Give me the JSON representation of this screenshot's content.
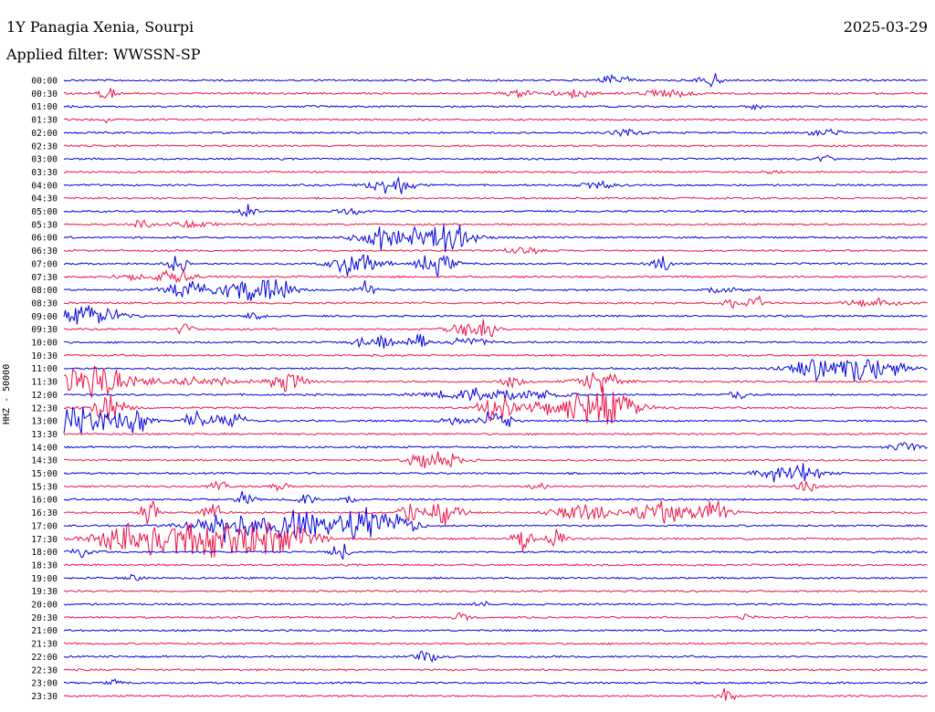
{
  "header": {
    "station": "1Y Panagia Xenia, Sourpi",
    "date": "2025-03-29",
    "filter": "Applied filter: WWSSN-SP"
  },
  "chart_data": {
    "type": "line",
    "title": "1Y Panagia Xenia, Sourpi",
    "ylabel": "HHZ - 50000",
    "row_labels": [
      "00:00",
      "00:30",
      "01:00",
      "01:30",
      "02:00",
      "02:30",
      "03:00",
      "03:30",
      "04:00",
      "04:30",
      "05:00",
      "05:30",
      "06:00",
      "06:30",
      "07:00",
      "07:30",
      "08:00",
      "08:30",
      "09:00",
      "09:30",
      "10:00",
      "10:30",
      "11:00",
      "11:30",
      "12:00",
      "12:30",
      "13:00",
      "13:30",
      "14:00",
      "14:30",
      "15:00",
      "15:30",
      "16:00",
      "16:30",
      "17:00",
      "17:30",
      "18:00",
      "18:30",
      "19:00",
      "19:30",
      "20:00",
      "20:30",
      "21:00",
      "21:30",
      "22:00",
      "22:30",
      "23:00",
      "23:30"
    ],
    "series_colors": [
      "#0000dd",
      "#ee1144"
    ],
    "minutes_per_row": 30,
    "bursts": [
      {
        "row": 0,
        "pos": 0.63,
        "width": 0.01,
        "amp": 5
      },
      {
        "row": 0,
        "pos": 0.65,
        "width": 0.01,
        "amp": 5
      },
      {
        "row": 0,
        "pos": 0.75,
        "width": 0.012,
        "amp": 10
      },
      {
        "row": 1,
        "pos": 0.05,
        "width": 0.01,
        "amp": 8
      },
      {
        "row": 1,
        "pos": 0.53,
        "width": 0.02,
        "amp": 4
      },
      {
        "row": 1,
        "pos": 0.59,
        "width": 0.02,
        "amp": 5
      },
      {
        "row": 1,
        "pos": 0.7,
        "width": 0.03,
        "amp": 4
      },
      {
        "row": 2,
        "pos": 0.8,
        "width": 0.01,
        "amp": 3
      },
      {
        "row": 3,
        "pos": 0.05,
        "width": 0.01,
        "amp": 3
      },
      {
        "row": 4,
        "pos": 0.65,
        "width": 0.015,
        "amp": 5
      },
      {
        "row": 4,
        "pos": 0.88,
        "width": 0.02,
        "amp": 4
      },
      {
        "row": 6,
        "pos": 0.88,
        "width": 0.01,
        "amp": 4
      },
      {
        "row": 7,
        "pos": 0.82,
        "width": 0.01,
        "amp": 3
      },
      {
        "row": 8,
        "pos": 0.38,
        "width": 0.025,
        "amp": 10
      },
      {
        "row": 8,
        "pos": 0.62,
        "width": 0.02,
        "amp": 4
      },
      {
        "row": 10,
        "pos": 0.21,
        "width": 0.01,
        "amp": 8
      },
      {
        "row": 10,
        "pos": 0.33,
        "width": 0.02,
        "amp": 3
      },
      {
        "row": 11,
        "pos": 0.09,
        "width": 0.01,
        "amp": 5
      },
      {
        "row": 11,
        "pos": 0.15,
        "width": 0.02,
        "amp": 4
      },
      {
        "row": 12,
        "pos": 0.36,
        "width": 0.02,
        "amp": 16
      },
      {
        "row": 12,
        "pos": 0.41,
        "width": 0.03,
        "amp": 10
      },
      {
        "row": 12,
        "pos": 0.45,
        "width": 0.025,
        "amp": 14
      },
      {
        "row": 13,
        "pos": 0.53,
        "width": 0.02,
        "amp": 4
      },
      {
        "row": 14,
        "pos": 0.13,
        "width": 0.01,
        "amp": 14
      },
      {
        "row": 14,
        "pos": 0.34,
        "width": 0.025,
        "amp": 16
      },
      {
        "row": 14,
        "pos": 0.43,
        "width": 0.02,
        "amp": 12
      },
      {
        "row": 14,
        "pos": 0.69,
        "width": 0.01,
        "amp": 10
      },
      {
        "row": 15,
        "pos": 0.08,
        "width": 0.03,
        "amp": 3
      },
      {
        "row": 15,
        "pos": 0.13,
        "width": 0.02,
        "amp": 8
      },
      {
        "row": 16,
        "pos": 0.14,
        "width": 0.025,
        "amp": 10
      },
      {
        "row": 16,
        "pos": 0.2,
        "width": 0.03,
        "amp": 8
      },
      {
        "row": 16,
        "pos": 0.24,
        "width": 0.025,
        "amp": 14
      },
      {
        "row": 16,
        "pos": 0.35,
        "width": 0.01,
        "amp": 10
      },
      {
        "row": 16,
        "pos": 0.76,
        "width": 0.02,
        "amp": 5
      },
      {
        "row": 17,
        "pos": 0.77,
        "width": 0.01,
        "amp": 6
      },
      {
        "row": 17,
        "pos": 0.8,
        "width": 0.01,
        "amp": 10
      },
      {
        "row": 17,
        "pos": 0.94,
        "width": 0.03,
        "amp": 5
      },
      {
        "row": 18,
        "pos": 0.02,
        "width": 0.02,
        "amp": 12
      },
      {
        "row": 18,
        "pos": 0.05,
        "width": 0.02,
        "amp": 8
      },
      {
        "row": 18,
        "pos": 0.22,
        "width": 0.01,
        "amp": 6
      },
      {
        "row": 19,
        "pos": 0.14,
        "width": 0.01,
        "amp": 6
      },
      {
        "row": 19,
        "pos": 0.46,
        "width": 0.02,
        "amp": 10
      },
      {
        "row": 19,
        "pos": 0.49,
        "width": 0.01,
        "amp": 12
      },
      {
        "row": 20,
        "pos": 0.36,
        "width": 0.02,
        "amp": 10
      },
      {
        "row": 20,
        "pos": 0.41,
        "width": 0.01,
        "amp": 10
      },
      {
        "row": 20,
        "pos": 0.47,
        "width": 0.02,
        "amp": 6
      },
      {
        "row": 22,
        "pos": 0.87,
        "width": 0.03,
        "amp": 12
      },
      {
        "row": 22,
        "pos": 0.93,
        "width": 0.04,
        "amp": 14
      },
      {
        "row": 23,
        "pos": 0.03,
        "width": 0.05,
        "amp": 18
      },
      {
        "row": 23,
        "pos": 0.16,
        "width": 0.05,
        "amp": 4
      },
      {
        "row": 23,
        "pos": 0.26,
        "width": 0.02,
        "amp": 12
      },
      {
        "row": 23,
        "pos": 0.52,
        "width": 0.015,
        "amp": 6
      },
      {
        "row": 23,
        "pos": 0.62,
        "width": 0.025,
        "amp": 12
      },
      {
        "row": 24,
        "pos": 0.78,
        "width": 0.01,
        "amp": 6
      },
      {
        "row": 24,
        "pos": 0.5,
        "width": 0.06,
        "amp": 10
      },
      {
        "row": 25,
        "pos": 0.05,
        "width": 0.02,
        "amp": 18
      },
      {
        "row": 25,
        "pos": 0.5,
        "width": 0.02,
        "amp": 14
      },
      {
        "row": 25,
        "pos": 0.6,
        "width": 0.05,
        "amp": 16
      },
      {
        "row": 25,
        "pos": 0.64,
        "width": 0.025,
        "amp": 14
      },
      {
        "row": 26,
        "pos": 0.01,
        "width": 0.04,
        "amp": 18
      },
      {
        "row": 26,
        "pos": 0.08,
        "width": 0.02,
        "amp": 14
      },
      {
        "row": 26,
        "pos": 0.15,
        "width": 0.01,
        "amp": 10
      },
      {
        "row": 26,
        "pos": 0.19,
        "width": 0.02,
        "amp": 10
      },
      {
        "row": 26,
        "pos": 0.45,
        "width": 0.015,
        "amp": 5
      },
      {
        "row": 26,
        "pos": 0.5,
        "width": 0.015,
        "amp": 16
      },
      {
        "row": 28,
        "pos": 0.98,
        "width": 0.02,
        "amp": 5
      },
      {
        "row": 29,
        "pos": 0.42,
        "width": 0.02,
        "amp": 10
      },
      {
        "row": 29,
        "pos": 0.45,
        "width": 0.015,
        "amp": 8
      },
      {
        "row": 30,
        "pos": 0.82,
        "width": 0.02,
        "amp": 10
      },
      {
        "row": 30,
        "pos": 0.86,
        "width": 0.02,
        "amp": 10
      },
      {
        "row": 31,
        "pos": 0.18,
        "width": 0.01,
        "amp": 8
      },
      {
        "row": 31,
        "pos": 0.25,
        "width": 0.01,
        "amp": 6
      },
      {
        "row": 31,
        "pos": 0.55,
        "width": 0.01,
        "amp": 5
      },
      {
        "row": 31,
        "pos": 0.86,
        "width": 0.01,
        "amp": 8
      },
      {
        "row": 32,
        "pos": 0.21,
        "width": 0.01,
        "amp": 8
      },
      {
        "row": 32,
        "pos": 0.28,
        "width": 0.01,
        "amp": 8
      },
      {
        "row": 32,
        "pos": 0.33,
        "width": 0.01,
        "amp": 6
      },
      {
        "row": 33,
        "pos": 0.1,
        "width": 0.01,
        "amp": 14
      },
      {
        "row": 33,
        "pos": 0.17,
        "width": 0.01,
        "amp": 14
      },
      {
        "row": 33,
        "pos": 0.4,
        "width": 0.01,
        "amp": 16
      },
      {
        "row": 33,
        "pos": 0.44,
        "width": 0.02,
        "amp": 12
      },
      {
        "row": 33,
        "pos": 0.6,
        "width": 0.03,
        "amp": 12
      },
      {
        "row": 33,
        "pos": 0.69,
        "width": 0.03,
        "amp": 12
      },
      {
        "row": 33,
        "pos": 0.75,
        "width": 0.02,
        "amp": 14
      },
      {
        "row": 34,
        "pos": 0.19,
        "width": 0.04,
        "amp": 16
      },
      {
        "row": 34,
        "pos": 0.28,
        "width": 0.04,
        "amp": 16
      },
      {
        "row": 34,
        "pos": 0.35,
        "width": 0.03,
        "amp": 18
      },
      {
        "row": 34,
        "pos": 0.39,
        "width": 0.02,
        "amp": 12
      },
      {
        "row": 35,
        "pos": 0.1,
        "width": 0.06,
        "amp": 18
      },
      {
        "row": 35,
        "pos": 0.18,
        "width": 0.05,
        "amp": 18
      },
      {
        "row": 35,
        "pos": 0.25,
        "width": 0.04,
        "amp": 16
      },
      {
        "row": 35,
        "pos": 0.53,
        "width": 0.01,
        "amp": 16
      },
      {
        "row": 35,
        "pos": 0.57,
        "width": 0.01,
        "amp": 14
      },
      {
        "row": 36,
        "pos": 0.02,
        "width": 0.01,
        "amp": 8
      },
      {
        "row": 36,
        "pos": 0.32,
        "width": 0.01,
        "amp": 10
      },
      {
        "row": 38,
        "pos": 0.08,
        "width": 0.01,
        "amp": 3
      },
      {
        "row": 40,
        "pos": 0.48,
        "width": 0.01,
        "amp": 4
      },
      {
        "row": 41,
        "pos": 0.46,
        "width": 0.01,
        "amp": 5
      },
      {
        "row": 41,
        "pos": 0.79,
        "width": 0.01,
        "amp": 3
      },
      {
        "row": 44,
        "pos": 0.42,
        "width": 0.015,
        "amp": 6
      },
      {
        "row": 46,
        "pos": 0.06,
        "width": 0.01,
        "amp": 3
      },
      {
        "row": 47,
        "pos": 0.77,
        "width": 0.01,
        "amp": 10
      }
    ]
  }
}
